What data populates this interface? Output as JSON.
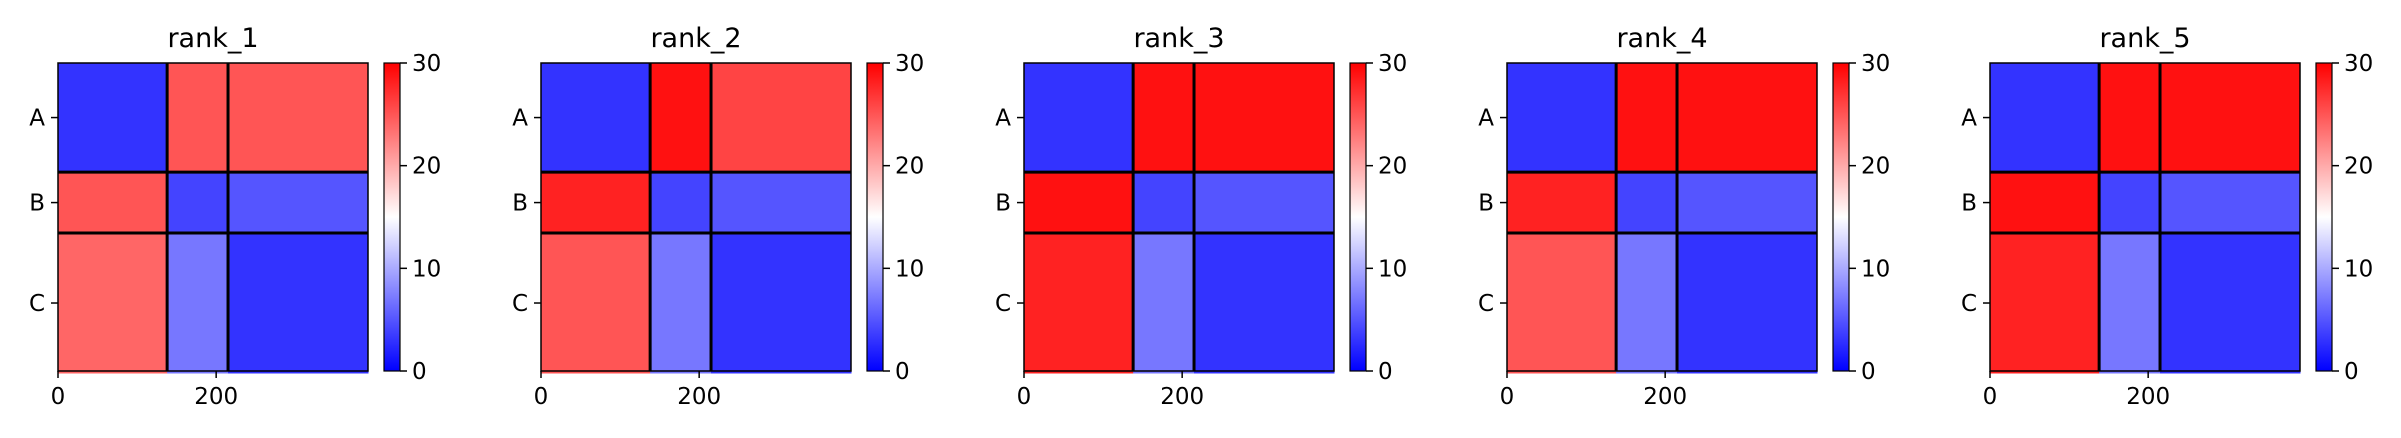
{
  "chart_data": [
    {
      "type": "heatmap",
      "title": "rank_1",
      "chains": [
        "A",
        "B",
        "C"
      ],
      "chain_boundaries": [
        0,
        138,
        215,
        392
      ],
      "x_ticks": [
        "0",
        "200"
      ],
      "x_tick_values": [
        0,
        200
      ],
      "color_range": [
        0,
        30
      ],
      "colorbar_ticks": [
        "0",
        "10",
        "20",
        "30"
      ],
      "colormap": [
        "#0000ff",
        "#ffffff",
        "#ff0000"
      ],
      "block_mean_values": [
        [
          3,
          25,
          25
        ],
        [
          25,
          4,
          5
        ],
        [
          24,
          7,
          3
        ]
      ],
      "grid": false
    },
    {
      "type": "heatmap",
      "title": "rank_2",
      "chains": [
        "A",
        "B",
        "C"
      ],
      "chain_boundaries": [
        0,
        138,
        215,
        392
      ],
      "x_ticks": [
        "0",
        "200"
      ],
      "x_tick_values": [
        0,
        200
      ],
      "color_range": [
        0,
        30
      ],
      "colorbar_ticks": [
        "0",
        "10",
        "20",
        "30"
      ],
      "colormap": [
        "#0000ff",
        "#ffffff",
        "#ff0000"
      ],
      "block_mean_values": [
        [
          3,
          29,
          26
        ],
        [
          28,
          4,
          5
        ],
        [
          25,
          7,
          3
        ]
      ],
      "grid": false
    },
    {
      "type": "heatmap",
      "title": "rank_3",
      "chains": [
        "A",
        "B",
        "C"
      ],
      "chain_boundaries": [
        0,
        138,
        215,
        392
      ],
      "x_ticks": [
        "0",
        "200"
      ],
      "x_tick_values": [
        0,
        200
      ],
      "color_range": [
        0,
        30
      ],
      "colorbar_ticks": [
        "0",
        "10",
        "20",
        "30"
      ],
      "colormap": [
        "#0000ff",
        "#ffffff",
        "#ff0000"
      ],
      "block_mean_values": [
        [
          3,
          29,
          29
        ],
        [
          29,
          4,
          5
        ],
        [
          28,
          7,
          3
        ]
      ],
      "grid": false
    },
    {
      "type": "heatmap",
      "title": "rank_4",
      "chains": [
        "A",
        "B",
        "C"
      ],
      "chain_boundaries": [
        0,
        138,
        215,
        392
      ],
      "x_ticks": [
        "0",
        "200"
      ],
      "x_tick_values": [
        0,
        200
      ],
      "color_range": [
        0,
        30
      ],
      "colorbar_ticks": [
        "0",
        "10",
        "20",
        "30"
      ],
      "colormap": [
        "#0000ff",
        "#ffffff",
        "#ff0000"
      ],
      "block_mean_values": [
        [
          3,
          29,
          29
        ],
        [
          28,
          4,
          5
        ],
        [
          25,
          7,
          3
        ]
      ],
      "grid": false
    },
    {
      "type": "heatmap",
      "title": "rank_5",
      "chains": [
        "A",
        "B",
        "C"
      ],
      "chain_boundaries": [
        0,
        138,
        215,
        392
      ],
      "x_ticks": [
        "0",
        "200"
      ],
      "x_tick_values": [
        0,
        200
      ],
      "color_range": [
        0,
        30
      ],
      "colorbar_ticks": [
        "0",
        "10",
        "20",
        "30"
      ],
      "colormap": [
        "#0000ff",
        "#ffffff",
        "#ff0000"
      ],
      "block_mean_values": [
        [
          3,
          29,
          29
        ],
        [
          29,
          4,
          5
        ],
        [
          28,
          7,
          3
        ]
      ],
      "grid": false
    }
  ]
}
